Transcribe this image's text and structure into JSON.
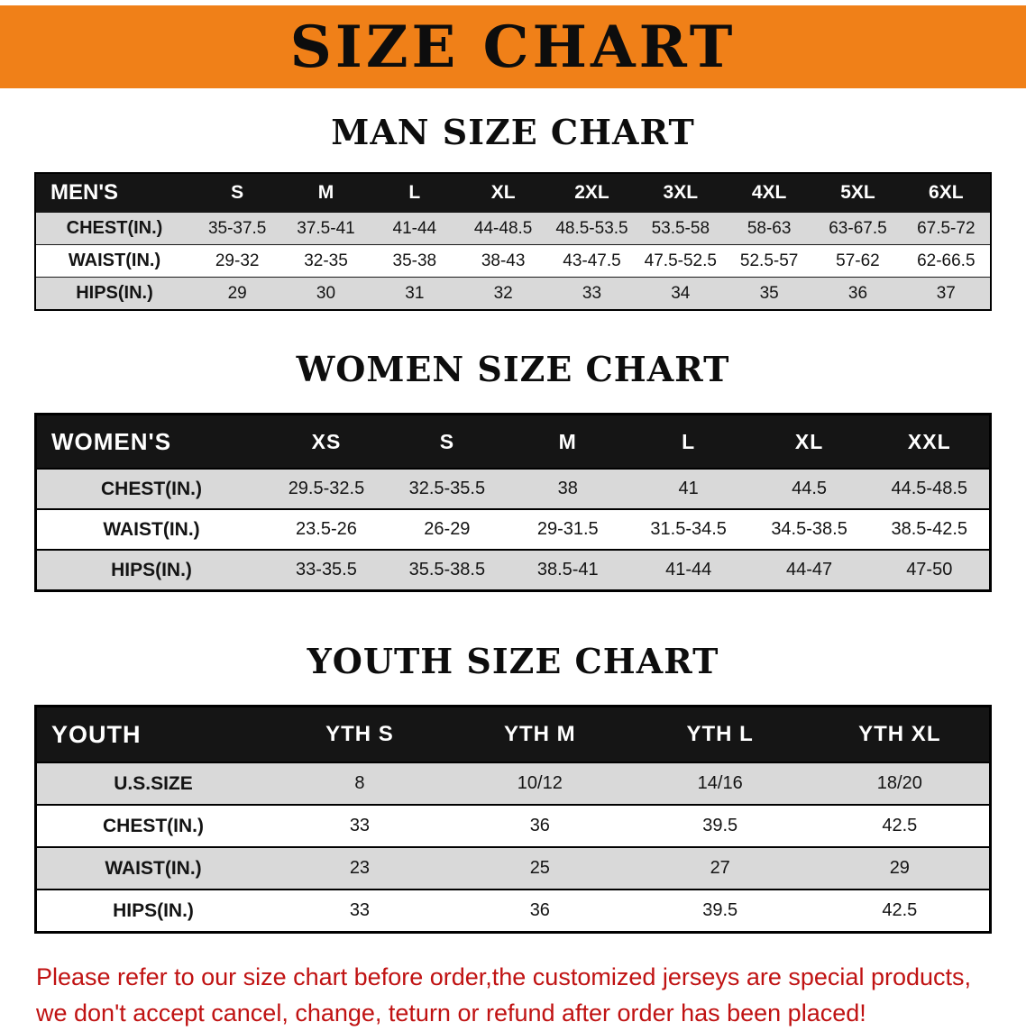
{
  "banner": {
    "title": "SIZE CHART"
  },
  "colors": {
    "banner_bg": "#f08018",
    "header_bg": "#151515",
    "row_shaded": "#d9d9d9",
    "footer_red": "#c01212"
  },
  "sections": [
    {
      "id": "men",
      "heading": "MAN SIZE CHART",
      "table": {
        "header": [
          "MEN'S",
          "S",
          "M",
          "L",
          "XL",
          "2XL",
          "3XL",
          "4XL",
          "5XL",
          "6XL"
        ],
        "rows": [
          [
            "CHEST(IN.)",
            "35-37.5",
            "37.5-41",
            "41-44",
            "44-48.5",
            "48.5-53.5",
            "53.5-58",
            "58-63",
            "63-67.5",
            "67.5-72"
          ],
          [
            "WAIST(IN.)",
            "29-32",
            "32-35",
            "35-38",
            "38-43",
            "43-47.5",
            "47.5-52.5",
            "52.5-57",
            "57-62",
            "62-66.5"
          ],
          [
            "HIPS(IN.)",
            "29",
            "30",
            "31",
            "32",
            "33",
            "34",
            "35",
            "36",
            "37"
          ]
        ]
      }
    },
    {
      "id": "women",
      "heading": "WOMEN SIZE CHART",
      "table": {
        "header": [
          "WOMEN'S",
          "XS",
          "S",
          "M",
          "L",
          "XL",
          "XXL"
        ],
        "rows": [
          [
            "CHEST(IN.)",
            "29.5-32.5",
            "32.5-35.5",
            "38",
            "41",
            "44.5",
            "44.5-48.5"
          ],
          [
            "WAIST(IN.)",
            "23.5-26",
            "26-29",
            "29-31.5",
            "31.5-34.5",
            "34.5-38.5",
            "38.5-42.5"
          ],
          [
            "HIPS(IN.)",
            "33-35.5",
            "35.5-38.5",
            "38.5-41",
            "41-44",
            "44-47",
            "47-50"
          ]
        ]
      }
    },
    {
      "id": "youth",
      "heading": "YOUTH SIZE CHART",
      "table": {
        "header": [
          "YOUTH",
          "YTH S",
          "YTH M",
          "YTH L",
          "YTH XL"
        ],
        "rows": [
          [
            "U.S.SIZE",
            "8",
            "10/12",
            "14/16",
            "18/20"
          ],
          [
            "CHEST(IN.)",
            "33",
            "36",
            "39.5",
            "42.5"
          ],
          [
            "WAIST(IN.)",
            "23",
            "25",
            "27",
            "29"
          ],
          [
            "HIPS(IN.)",
            "33",
            "36",
            "39.5",
            "42.5"
          ]
        ]
      }
    }
  ],
  "footer": {
    "lines": [
      "Please refer to our size chart before order,the customized jerseys are special products,",
      "we don't accept cancel, change, teturn or refund after order has been placed!"
    ]
  }
}
